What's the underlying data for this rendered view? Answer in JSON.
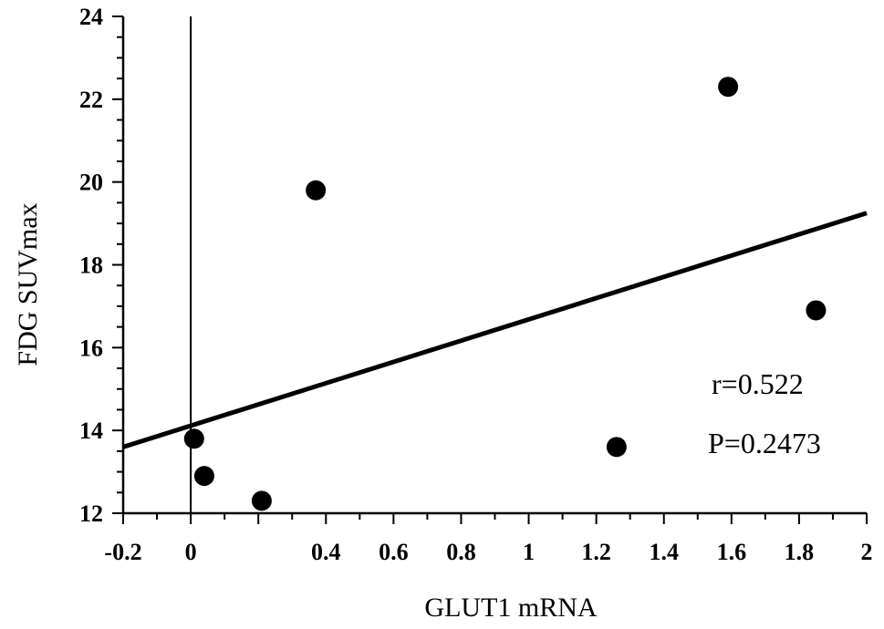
{
  "chart_data": {
    "type": "scatter",
    "title": "",
    "xlabel": "GLUT1 mRNA",
    "ylabel": "FDG SUVmax",
    "xlim": [
      -0.2,
      2
    ],
    "ylim": [
      12,
      24
    ],
    "xticks": [
      -0.2,
      0,
      0.4,
      0.6,
      0.8,
      1,
      1.2,
      1.4,
      1.6,
      1.8,
      2
    ],
    "xtick_labels": [
      "-0.2",
      "0",
      "0.4",
      "0.6",
      "0.8",
      "1",
      "1.2",
      "1.4",
      "1.6",
      "1.8",
      "2"
    ],
    "yticks": [
      12,
      14,
      16,
      18,
      20,
      22,
      24
    ],
    "ytick_labels": [
      "12",
      "14",
      "16",
      "18",
      "20",
      "22",
      "24"
    ],
    "x_minor_step": 0.1,
    "y_minor_step": 0.5,
    "vertical_line_x": 0,
    "grid": false,
    "points": [
      {
        "x": 0.01,
        "y": 13.8
      },
      {
        "x": 0.04,
        "y": 12.9
      },
      {
        "x": 0.21,
        "y": 12.3
      },
      {
        "x": 0.37,
        "y": 19.8
      },
      {
        "x": 1.26,
        "y": 13.6
      },
      {
        "x": 1.59,
        "y": 22.3
      },
      {
        "x": 1.85,
        "y": 16.9
      }
    ],
    "trendline": {
      "x": [
        -0.2,
        2
      ],
      "y": [
        13.6,
        19.25
      ]
    },
    "annotations": [
      "r=0.522",
      "P=0.2473"
    ]
  }
}
